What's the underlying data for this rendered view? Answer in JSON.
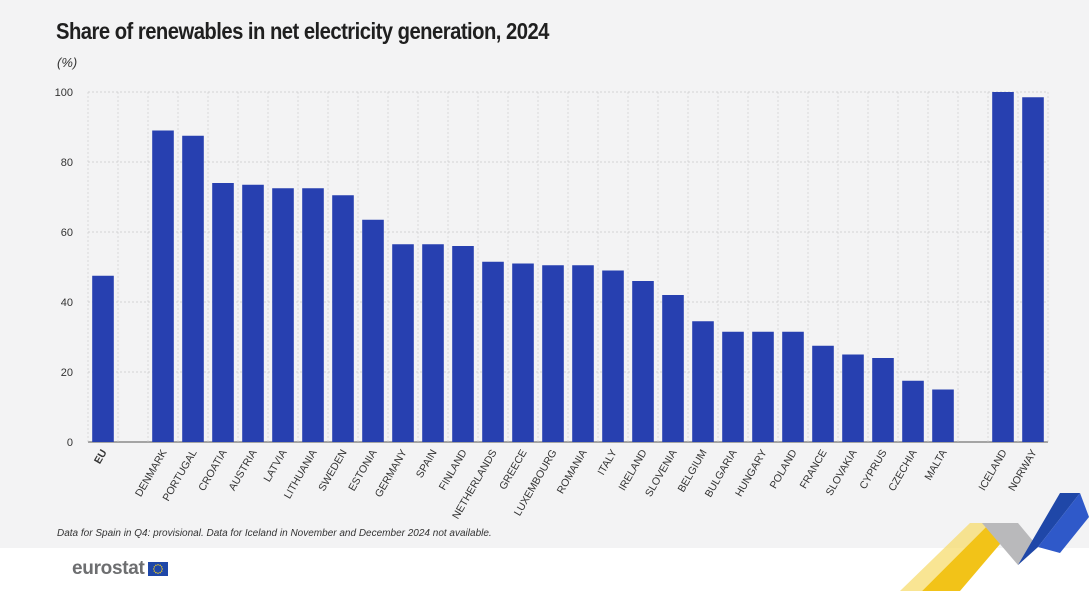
{
  "header": {
    "title": "Share of renewables in net electricity generation, 2024",
    "unit": "(%)"
  },
  "footer": {
    "note": "Data for Spain in Q4: provisional. Data for Iceland in November and December 2024 not available.",
    "brand": "eurostat"
  },
  "colors": {
    "bar": "#2740b0",
    "grid": "#c9c9c9",
    "panel": "#f3f3f4"
  },
  "chart_data": {
    "type": "bar",
    "title": "Share of renewables in net electricity generation, 2024",
    "ylabel": "(%)",
    "ylim": [
      0,
      100
    ],
    "yticks": [
      0,
      20,
      40,
      60,
      80,
      100
    ],
    "grid": true,
    "categories": [
      "EU",
      "",
      "DENMARK",
      "PORTUGAL",
      "CROATIA",
      "AUSTRIA",
      "LATVIA",
      "LITHUANIA",
      "SWEDEN",
      "ESTONIA",
      "GERMANY",
      "SPAIN",
      "FINLAND",
      "NETHERLANDS",
      "GREECE",
      "LUXEMBOURG",
      "ROMANIA",
      "ITALY",
      "IRELAND",
      "SLOVENIA",
      "BELGIUM",
      "BULGARIA",
      "HUNGARY",
      "POLAND",
      "FRANCE",
      "SLOVAKIA",
      "CYPRUS",
      "CZECHIA",
      "MALTA",
      "",
      "ICELAND",
      "NORWAY"
    ],
    "values": [
      47.5,
      null,
      89,
      87.5,
      74,
      73.5,
      72.5,
      72.5,
      70.5,
      63.5,
      56.5,
      56.5,
      56,
      51.5,
      51,
      50.5,
      50.5,
      49,
      46,
      42,
      34.5,
      31.5,
      31.5,
      31.5,
      27.5,
      25,
      24,
      17.5,
      15,
      null,
      100,
      98.5
    ]
  }
}
